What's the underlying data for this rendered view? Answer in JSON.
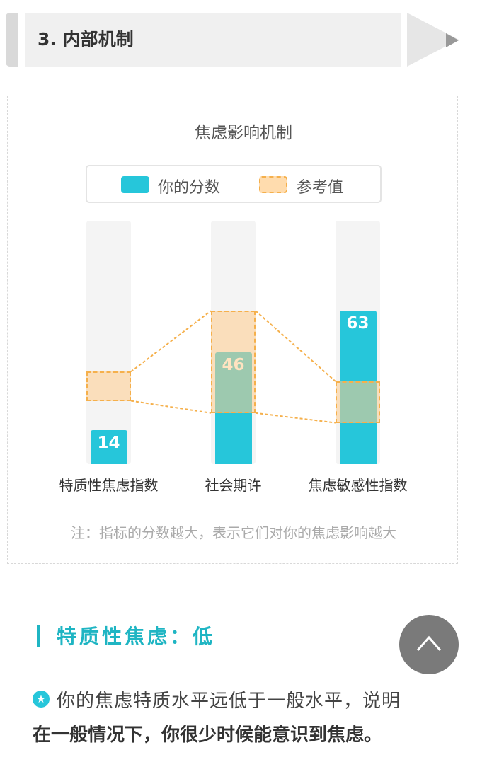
{
  "header": {
    "title": "3. 内部机制"
  },
  "chart_data": {
    "type": "bar",
    "title": "焦虑影响机制",
    "categories": [
      "特质性焦虑指数",
      "社会期许",
      "焦虑敏感性指数"
    ],
    "series": [
      {
        "name": "你的分数",
        "values": [
          14,
          46,
          63
        ],
        "color": "#26c6da"
      },
      {
        "name": "参考值",
        "ranges": [
          [
            26,
            38
          ],
          [
            21,
            63
          ],
          [
            17,
            34
          ]
        ],
        "color": "#ffcc8c"
      }
    ],
    "ylim": [
      0,
      100
    ],
    "legend": "top",
    "grid": false
  },
  "legend": {
    "score": "你的分数",
    "reference": "参考值"
  },
  "note": "注：指标的分数越大，表示它们对你的焦虑影响越大",
  "section": {
    "title": "特质性焦虑：低",
    "line1": "你的焦虑特质水平远低于一般水平，说明",
    "line2": "在一般情况下，你很少时候能意识到焦虑。",
    "icon": "star-icon"
  },
  "fab": {
    "icon": "chevron-up-icon"
  }
}
